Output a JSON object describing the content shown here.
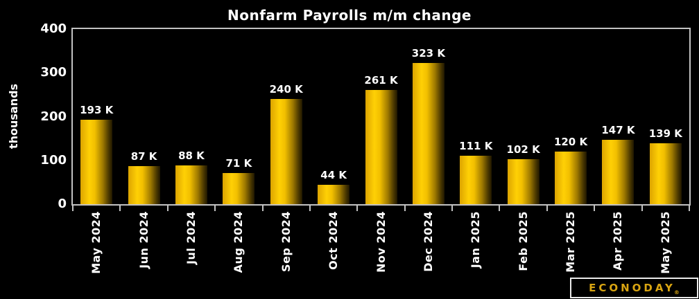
{
  "title": "Nonfarm Payrolls m/m change",
  "chart_data": {
    "type": "bar",
    "title": "Nonfarm Payrolls m/m change",
    "ylabel": "thousands",
    "xlabel": "",
    "categories": [
      "May 2024",
      "Jun 2024",
      "Jul 2024",
      "Aug 2024",
      "Sep 2024",
      "Oct 2024",
      "Nov 2024",
      "Dec 2024",
      "Jan 2025",
      "Feb 2025",
      "Mar 2025",
      "Apr 2025",
      "May 2025"
    ],
    "values": [
      193,
      87,
      88,
      71,
      240,
      44,
      261,
      323,
      111,
      102,
      120,
      147,
      139
    ],
    "value_labels": [
      "193 K",
      "87 K",
      "88 K",
      "71 K",
      "240 K",
      "44 K",
      "261 K",
      "323 K",
      "111 K",
      "102 K",
      "120 K",
      "147 K",
      "139 K"
    ],
    "ylim": [
      0,
      400
    ],
    "yticks": [
      0,
      100,
      200,
      300,
      400
    ],
    "grid": false,
    "legend": "none"
  },
  "colors": {
    "background": "#000000",
    "text": "#ffffff",
    "axis_border": "#c3c3c3",
    "bar_bright": "#ffd005",
    "bar_shadow": "#4d3a00",
    "logo_gold": "#d9a512"
  },
  "logo": {
    "text": "ECONODAY",
    "mark": "®"
  }
}
